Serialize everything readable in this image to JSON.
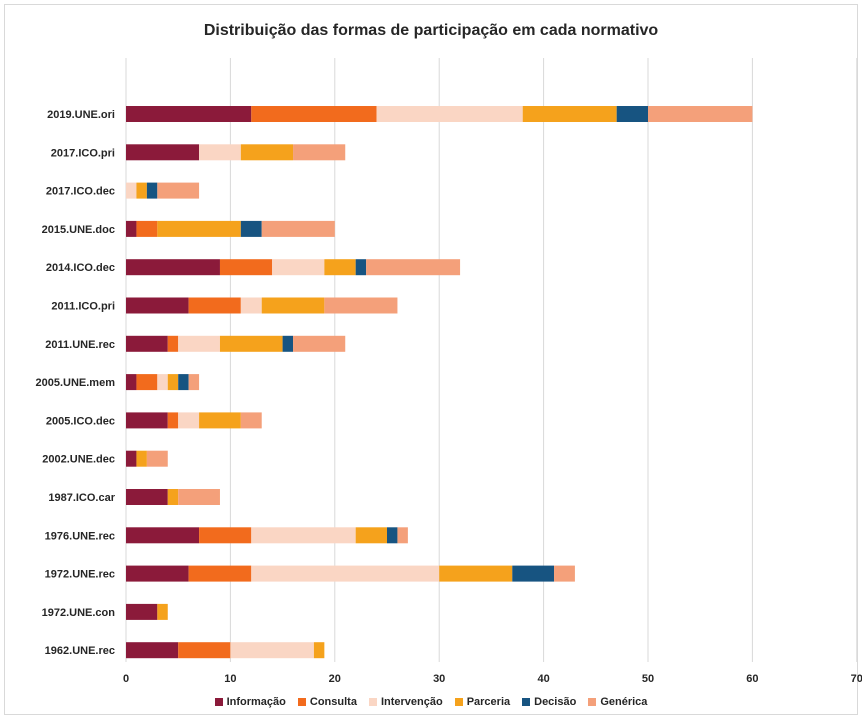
{
  "chart_data": {
    "type": "bar",
    "orientation": "horizontal",
    "stacked": true,
    "title": "Distribuição das formas de participação em cada normativo",
    "xlim": [
      0,
      70
    ],
    "x_ticks": [
      "0",
      "10",
      "20",
      "30",
      "40",
      "50",
      "60",
      "70"
    ],
    "grid": true,
    "legend_position": "bottom",
    "categories": [
      "2019.UNE.ori",
      "2017.ICO.pri",
      "2017.ICO.dec",
      "2015.UNE.doc",
      "2014.ICO.dec",
      "2011.ICO.pri",
      "2011.UNE.rec",
      "2005.UNE.mem",
      "2005.ICO.dec",
      "2002.UNE.dec",
      "1987.ICO.car",
      "1976.UNE.rec",
      "1972.UNE.rec",
      "1972.UNE.con",
      "1962.UNE.rec"
    ],
    "series": [
      {
        "name": "Informação",
        "color": "#8b1a3a",
        "values": [
          12,
          7,
          0,
          1,
          9,
          6,
          4,
          1,
          4,
          1,
          4,
          7,
          6,
          3,
          5
        ]
      },
      {
        "name": "Consulta",
        "color": "#f26b1d",
        "values": [
          12,
          0,
          0,
          2,
          5,
          5,
          1,
          2,
          1,
          0,
          0,
          5,
          6,
          0,
          5
        ]
      },
      {
        "name": "Intervenção",
        "color": "#fad6c4",
        "values": [
          14,
          4,
          1,
          0,
          5,
          2,
          4,
          1,
          2,
          0,
          0,
          10,
          18,
          0,
          8
        ]
      },
      {
        "name": "Parceria",
        "color": "#f5a21c",
        "values": [
          9,
          5,
          1,
          8,
          3,
          6,
          6,
          1,
          4,
          1,
          1,
          3,
          7,
          1,
          1
        ]
      },
      {
        "name": "Decisão",
        "color": "#175481",
        "values": [
          3,
          0,
          1,
          2,
          1,
          0,
          1,
          1,
          0,
          0,
          0,
          1,
          4,
          0,
          0
        ]
      },
      {
        "name": "Genérica",
        "color": "#f4a07a",
        "values": [
          10,
          5,
          4,
          7,
          9,
          7,
          5,
          1,
          2,
          2,
          4,
          1,
          2,
          0,
          0
        ]
      }
    ]
  }
}
